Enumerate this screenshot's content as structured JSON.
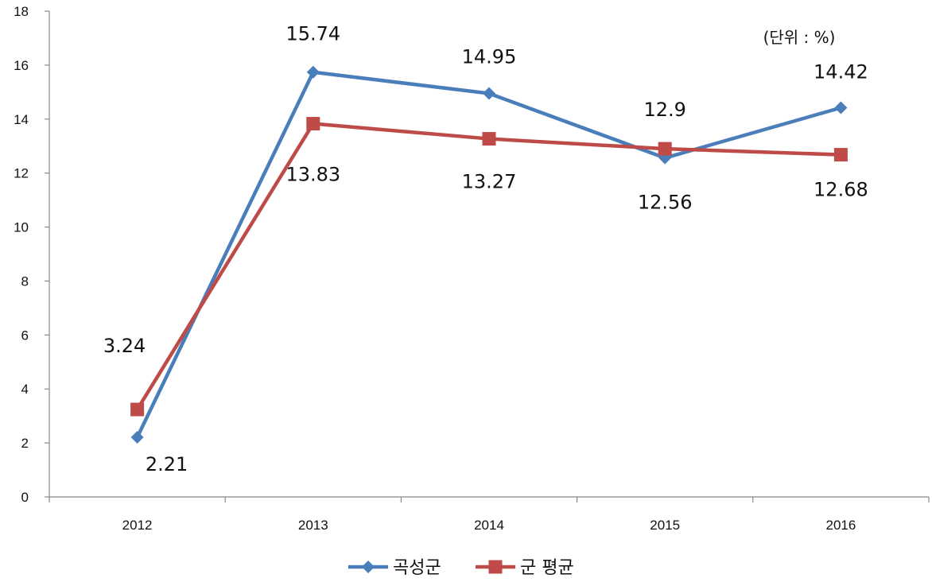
{
  "chart_data": {
    "type": "line",
    "title": "",
    "xlabel": "",
    "ylabel": "",
    "unit_note": "(단위 : %)",
    "categories": [
      "2012",
      "2013",
      "2014",
      "2015",
      "2016"
    ],
    "ylim": [
      0,
      18
    ],
    "yticks": [
      "0",
      "2",
      "4",
      "6",
      "8",
      "10",
      "12",
      "14",
      "16",
      "18"
    ],
    "grid": false,
    "legend_position": "bottom",
    "series": [
      {
        "name": "곡성군",
        "values": [
          2.21,
          15.74,
          14.95,
          12.56,
          14.42
        ],
        "labels": [
          "2.21",
          "15.74",
          "14.95",
          "12.56",
          "14.42"
        ],
        "color": "#4a7ebb",
        "marker": "diamond"
      },
      {
        "name": "군 평균",
        "values": [
          3.24,
          13.83,
          13.27,
          12.9,
          12.68
        ],
        "labels": [
          "3.24",
          "13.83",
          "13.27",
          "12.9",
          "12.68"
        ],
        "color": "#be4b48",
        "marker": "square"
      }
    ]
  }
}
